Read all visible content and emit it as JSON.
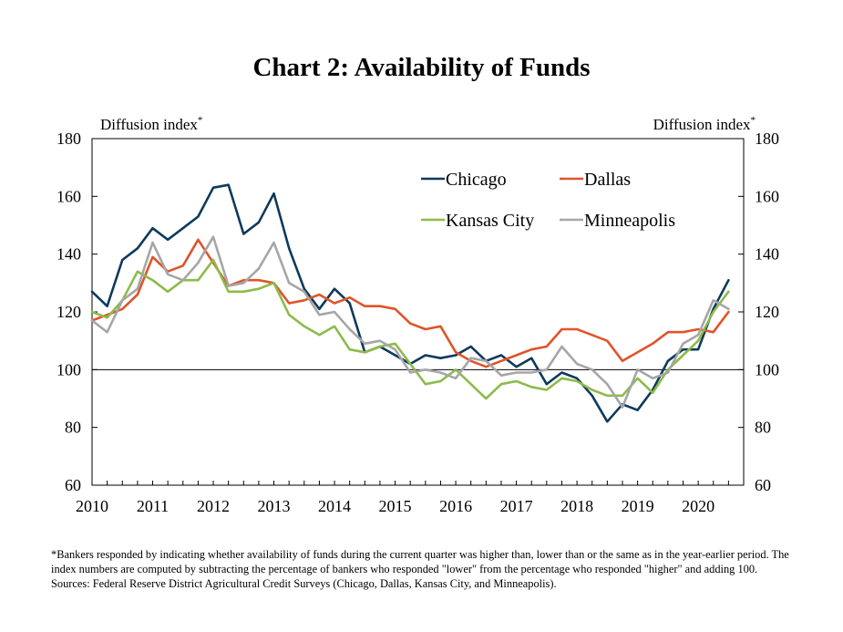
{
  "chart_data": {
    "type": "line",
    "title": "Chart 2: Availability of Funds",
    "ylabel_left": "Diffusion index",
    "ylabel_right": "Diffusion index",
    "ylabel_marker": "*",
    "ylim": [
      60,
      180
    ],
    "yticks": [
      60,
      80,
      100,
      120,
      140,
      160,
      180
    ],
    "xlim": [
      2010,
      2020.75
    ],
    "xticks": [
      2010,
      2011,
      2012,
      2013,
      2014,
      2015,
      2016,
      2017,
      2018,
      2019,
      2020
    ],
    "reference_line": 100,
    "legend_placement": "top-right",
    "series": [
      {
        "name": "Chicago",
        "color": "#0e3a5c",
        "x": [
          2010.0,
          2010.25,
          2010.5,
          2010.75,
          2011.0,
          2011.25,
          2011.5,
          2011.75,
          2012.0,
          2012.25,
          2012.5,
          2012.75,
          2013.0,
          2013.25,
          2013.5,
          2013.75,
          2014.0,
          2014.25,
          2014.5,
          2014.75,
          2015.0,
          2015.25,
          2015.5,
          2015.75,
          2016.0,
          2016.25,
          2016.5,
          2016.75,
          2017.0,
          2017.25,
          2017.5,
          2017.75,
          2018.0,
          2018.25,
          2018.5,
          2018.75,
          2019.0,
          2019.25,
          2019.5,
          2019.75,
          2020.0,
          2020.25,
          2020.5
        ],
        "values": [
          127,
          122,
          138,
          142,
          149,
          145,
          149,
          153,
          163,
          164,
          147,
          151,
          161,
          142,
          128,
          121,
          128,
          123,
          106,
          108,
          105,
          102,
          105,
          104,
          105,
          108,
          103,
          105,
          101,
          104,
          95,
          99,
          97,
          91,
          82,
          88,
          86,
          93,
          103,
          107,
          107,
          121,
          131
        ]
      },
      {
        "name": "Dallas",
        "color": "#e0542a",
        "x": [
          2010.0,
          2010.25,
          2010.5,
          2010.75,
          2011.0,
          2011.25,
          2011.5,
          2011.75,
          2012.0,
          2012.25,
          2012.5,
          2012.75,
          2013.0,
          2013.25,
          2013.5,
          2013.75,
          2014.0,
          2014.25,
          2014.5,
          2014.75,
          2015.0,
          2015.25,
          2015.5,
          2015.75,
          2016.0,
          2016.25,
          2016.5,
          2016.75,
          2017.0,
          2017.25,
          2017.5,
          2017.75,
          2018.0,
          2018.25,
          2018.5,
          2018.75,
          2019.0,
          2019.25,
          2019.5,
          2019.75,
          2020.0,
          2020.25,
          2020.5
        ],
        "values": [
          117,
          119,
          121,
          126,
          139,
          134,
          136,
          145,
          137,
          129,
          131,
          131,
          130,
          123,
          124,
          126,
          123,
          125,
          122,
          122,
          121,
          116,
          114,
          115,
          106,
          103,
          101,
          103,
          105,
          107,
          108,
          114,
          114,
          112,
          110,
          103,
          106,
          109,
          113,
          113,
          114,
          113,
          120
        ]
      },
      {
        "name": "Kansas City",
        "color": "#8dbb4a",
        "x": [
          2010.0,
          2010.25,
          2010.5,
          2010.75,
          2011.0,
          2011.25,
          2011.5,
          2011.75,
          2012.0,
          2012.25,
          2012.5,
          2012.75,
          2013.0,
          2013.25,
          2013.5,
          2013.75,
          2014.0,
          2014.25,
          2014.5,
          2014.75,
          2015.0,
          2015.25,
          2015.5,
          2015.75,
          2016.0,
          2016.25,
          2016.5,
          2016.75,
          2017.0,
          2017.25,
          2017.5,
          2017.75,
          2018.0,
          2018.25,
          2018.5,
          2018.75,
          2019.0,
          2019.25,
          2019.5,
          2019.75,
          2020.0,
          2020.25,
          2020.5
        ],
        "values": [
          120,
          118,
          124,
          134,
          131,
          127,
          131,
          131,
          138,
          127,
          127,
          128,
          130,
          119,
          115,
          112,
          115,
          107,
          106,
          108,
          109,
          102,
          95,
          96,
          100,
          95,
          90,
          95,
          96,
          94,
          93,
          97,
          96,
          93,
          91,
          91,
          97,
          92,
          100,
          105,
          110,
          120,
          127
        ]
      },
      {
        "name": "Minneapolis",
        "color": "#a6a6a6",
        "x": [
          2010.0,
          2010.25,
          2010.5,
          2010.75,
          2011.0,
          2011.25,
          2011.5,
          2011.75,
          2012.0,
          2012.25,
          2012.5,
          2012.75,
          2013.0,
          2013.25,
          2013.5,
          2013.75,
          2014.0,
          2014.25,
          2014.5,
          2014.75,
          2015.0,
          2015.25,
          2015.5,
          2015.75,
          2016.0,
          2016.25,
          2016.5,
          2016.75,
          2017.0,
          2017.25,
          2017.5,
          2017.75,
          2018.0,
          2018.25,
          2018.5,
          2018.75,
          2019.0,
          2019.25,
          2019.5,
          2019.75,
          2020.0,
          2020.25,
          2020.5
        ],
        "values": [
          117,
          113,
          124,
          128,
          144,
          133,
          131,
          137,
          146,
          129,
          130,
          135,
          144,
          130,
          127,
          119,
          120,
          114,
          109,
          110,
          107,
          99,
          100,
          99,
          97,
          104,
          103,
          98,
          99,
          99,
          100,
          108,
          102,
          100,
          95,
          87,
          100,
          97,
          99,
          109,
          112,
          124,
          121
        ]
      }
    ]
  },
  "notes": {
    "footnote": "*Bankers responded by indicating whether availability of funds during the current quarter was higher than, lower than or the same as in the year-earlier period. The index numbers are computed by subtracting the percentage of bankers who responded \"lower\" from the percentage who responded \"higher\" and adding 100.",
    "sources": "Sources: Federal Reserve District Agricultural Credit Surveys (Chicago, Dallas, Kansas City, and Minneapolis)."
  }
}
